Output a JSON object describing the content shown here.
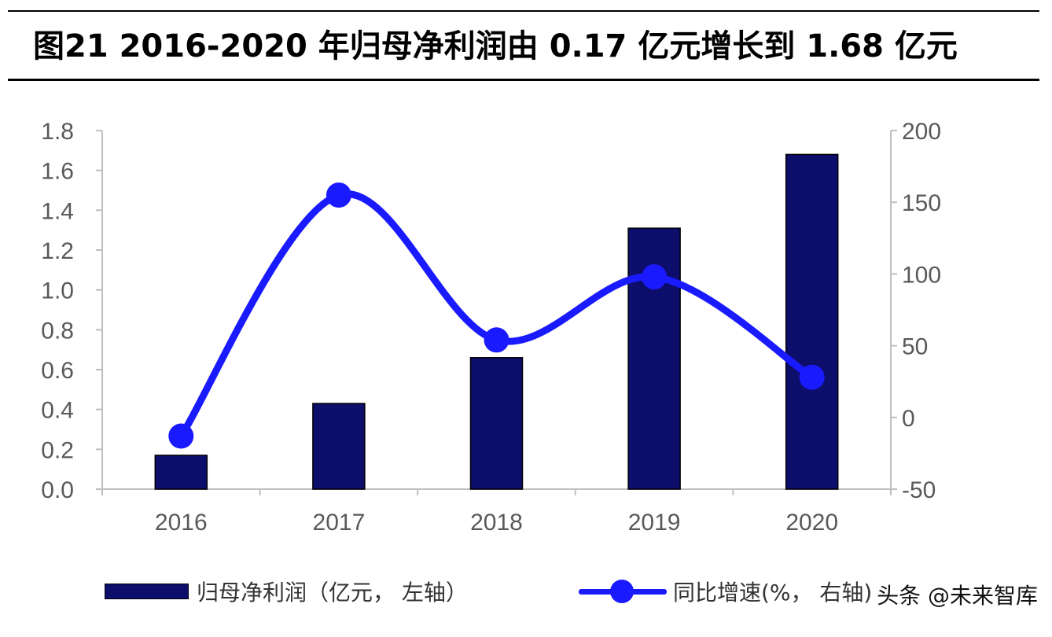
{
  "title": "图21 2016-2020 年归母净利润由 0.17 亿元增长到 1.68 亿元",
  "legend": {
    "bar_label": "归母净利润（亿元， 左轴）",
    "line_label": "同比增速(%， 右轴)"
  },
  "watermark": "头条 @未来智库",
  "colors": {
    "bar": "#0d0d6b",
    "line": "#1a1aff",
    "axis": "#bfbfbf",
    "tick": "#595959"
  },
  "chart_data": {
    "type": "bar",
    "categories": [
      "2016",
      "2017",
      "2018",
      "2019",
      "2020"
    ],
    "series": [
      {
        "name": "归母净利润（亿元， 左轴）",
        "type": "bar",
        "axis": "left",
        "values": [
          0.17,
          0.43,
          0.66,
          1.31,
          1.68
        ]
      },
      {
        "name": "同比增速(%， 右轴)",
        "type": "line",
        "axis": "right",
        "smooth": true,
        "values": [
          -13,
          155,
          54,
          98,
          28
        ]
      }
    ],
    "y_left": {
      "range": [
        0,
        1.8
      ],
      "ticks": [
        "0.0",
        "0.2",
        "0.4",
        "0.6",
        "0.8",
        "1.0",
        "1.2",
        "1.4",
        "1.6",
        "1.8"
      ]
    },
    "y_right": {
      "range": [
        -50,
        200
      ],
      "ticks": [
        "-50",
        "0",
        "50",
        "100",
        "150",
        "200"
      ]
    },
    "grid": false,
    "legend_position": "bottom"
  }
}
